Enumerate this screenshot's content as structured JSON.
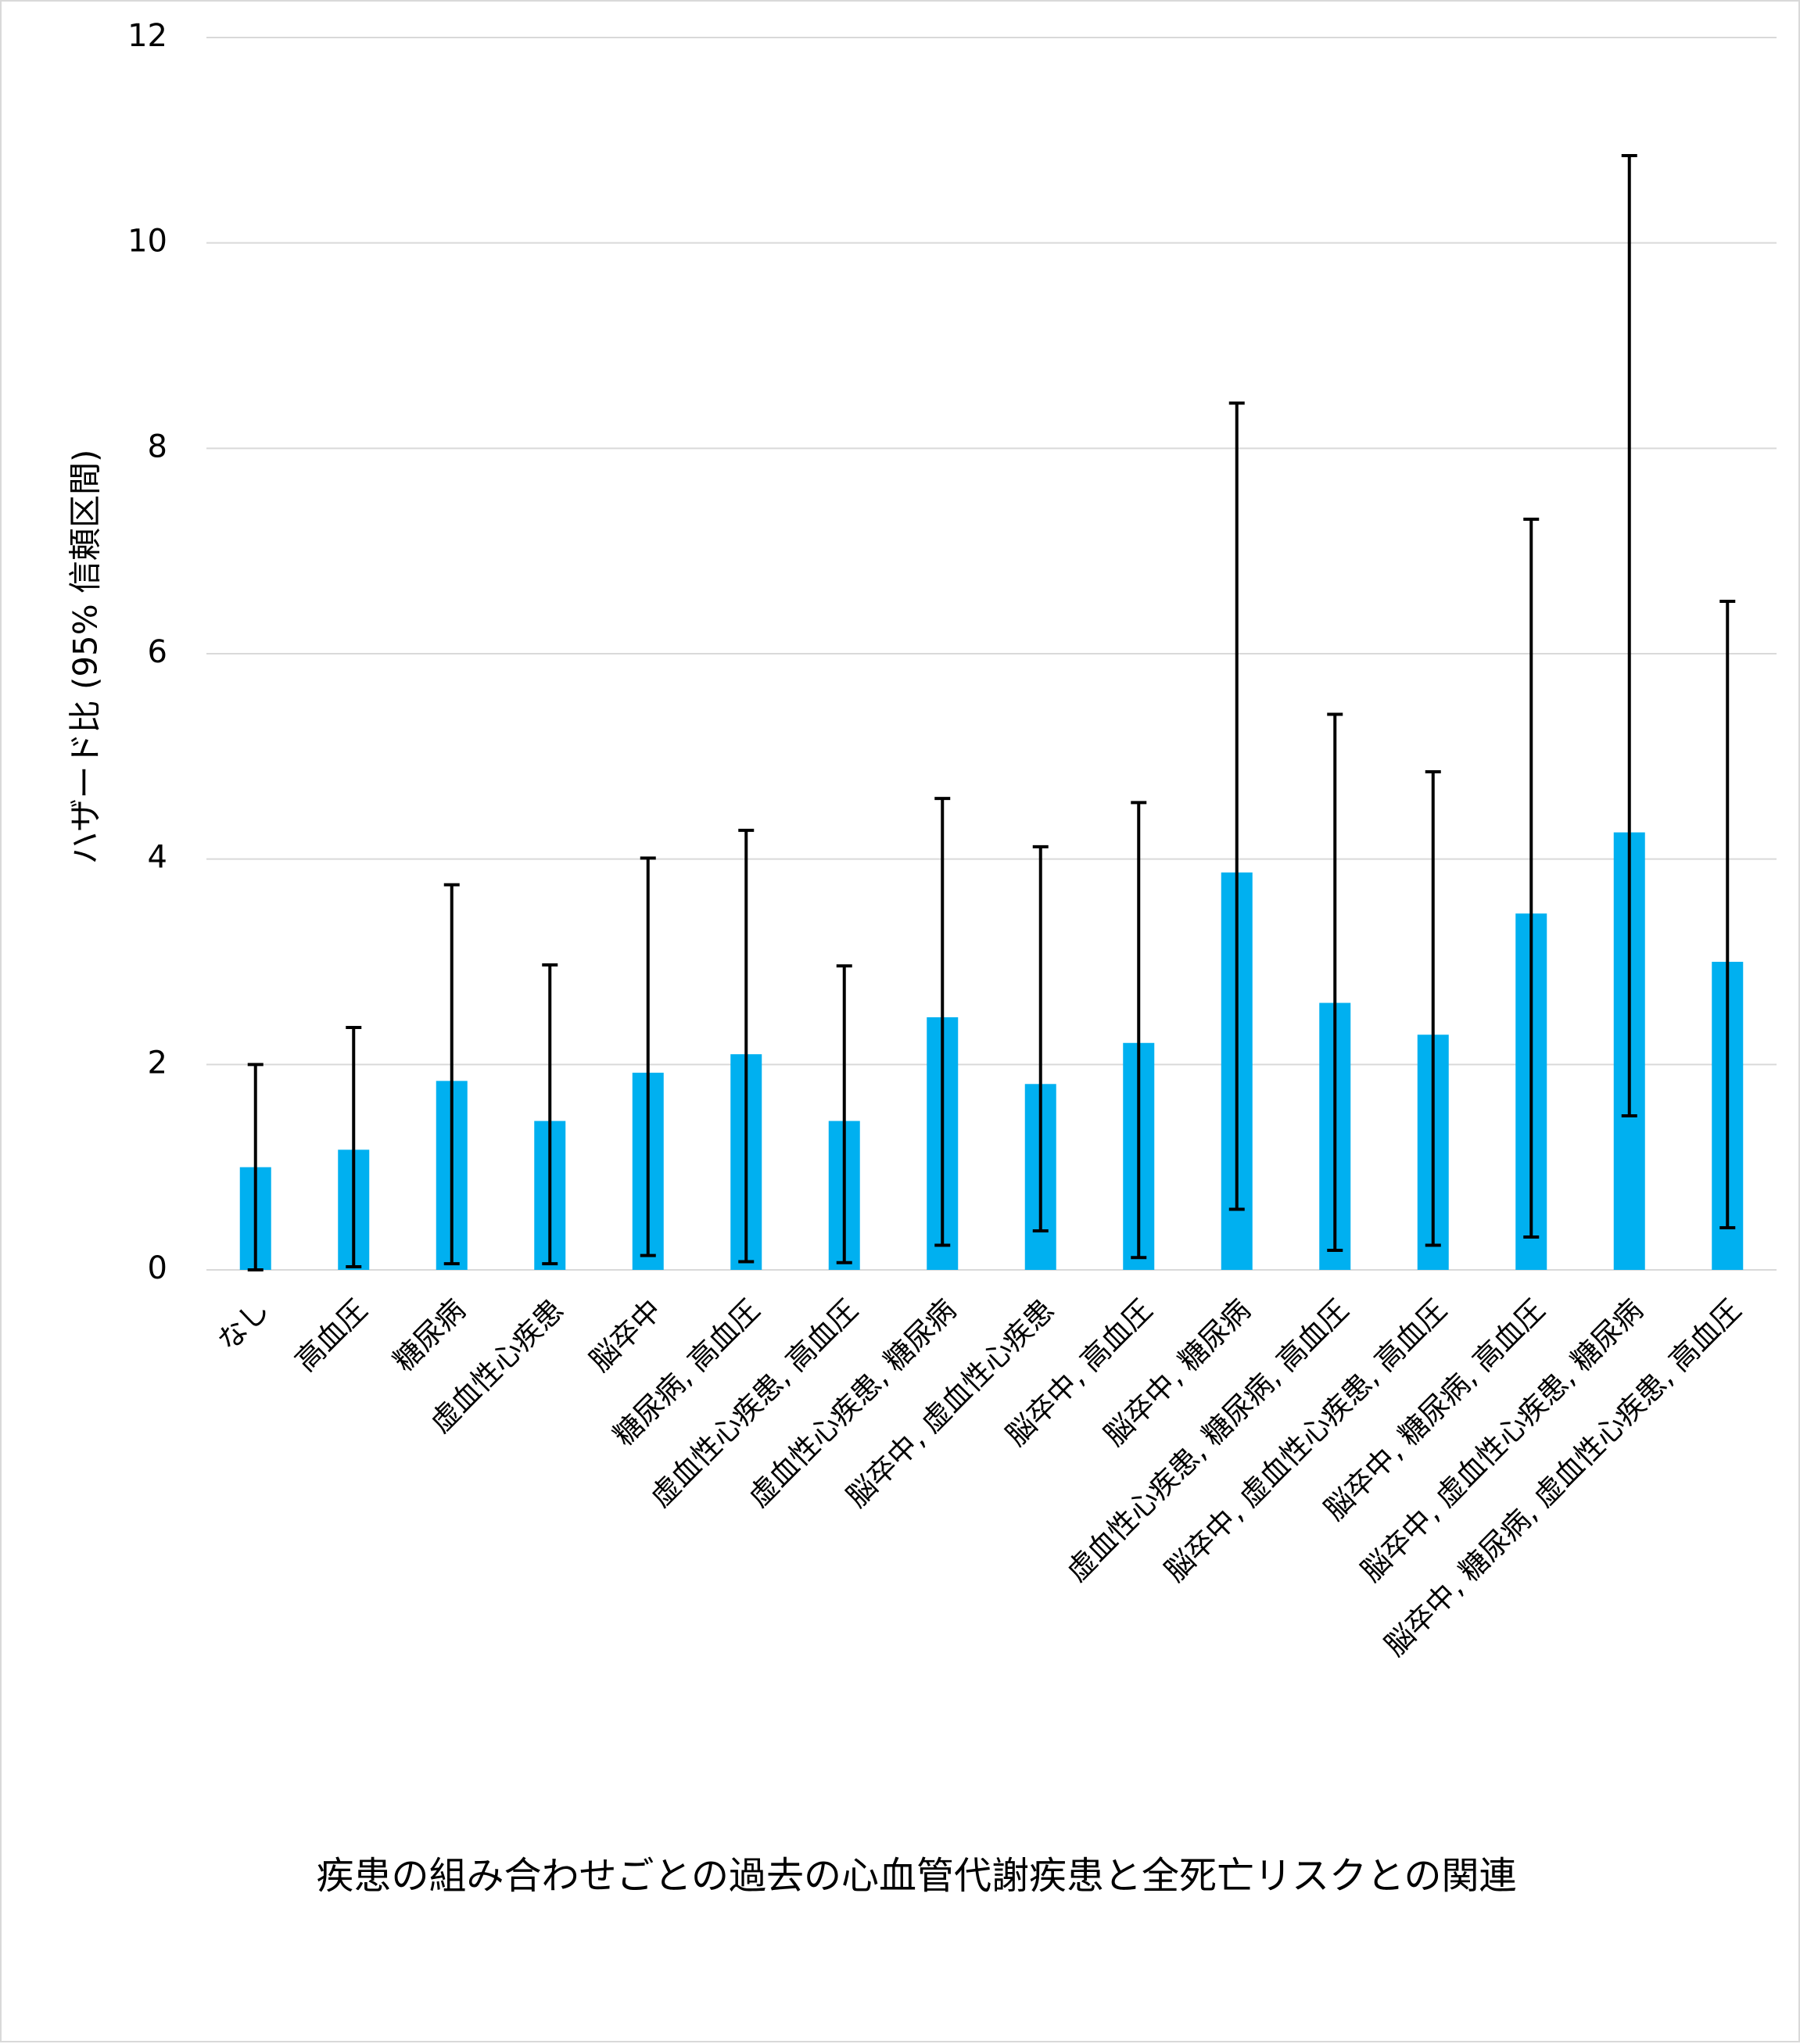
{
  "chart_data": {
    "type": "bar",
    "title": "",
    "xlabel": "疾患の組み合わせごとの過去の心血管代謝疾患と全死亡リスクとの関連",
    "ylabel": "ハザード比 (95% 信頼区間)",
    "ylim": [
      0,
      12
    ],
    "yticks": [
      0,
      2,
      4,
      6,
      8,
      10,
      12
    ],
    "grid": true,
    "legend": "none",
    "bar_color": "#00b0f0",
    "error_bar_color": "#000000",
    "categories": [
      "なし",
      "高血圧",
      "糖尿病",
      "虚血性心疾患",
      "脳卒中",
      "糖尿病, 高血圧",
      "虚血性心疾患, 高血圧",
      "虚血性心疾患, 糖尿病",
      "脳卒中, 虚血性心疾患",
      "脳卒中, 高血圧",
      "脳卒中, 糖尿病",
      "虚血性心疾患, 糖尿病, 高血圧",
      "脳卒中, 虚血性心疾患, 高血圧",
      "脳卒中, 糖尿病, 高血圧",
      "脳卒中, 虚血性心疾患, 糖尿病",
      "脳卒中, 糖尿病, 虚血性心疾患, 高血圧"
    ],
    "values": [
      1.0,
      1.17,
      1.84,
      1.45,
      1.92,
      2.1,
      1.45,
      2.46,
      1.81,
      2.21,
      3.87,
      2.6,
      2.29,
      3.47,
      4.26,
      3.0
    ],
    "ci_lower": [
      0.0,
      0.03,
      0.06,
      0.06,
      0.14,
      0.08,
      0.07,
      0.24,
      0.38,
      0.12,
      0.59,
      0.19,
      0.24,
      0.32,
      1.5,
      0.41
    ],
    "ci_upper": [
      2.0,
      2.36,
      3.75,
      2.97,
      4.01,
      4.28,
      2.96,
      4.59,
      4.12,
      4.55,
      8.44,
      5.41,
      4.85,
      7.31,
      10.85,
      6.51
    ]
  }
}
